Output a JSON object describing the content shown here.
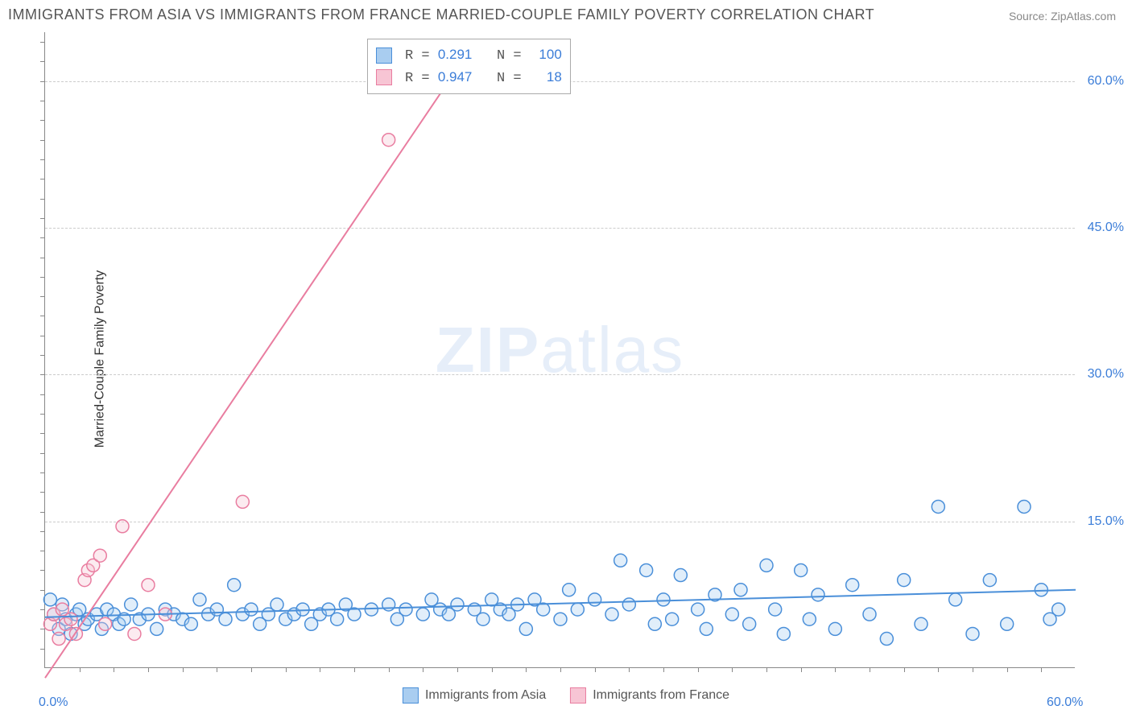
{
  "title": "IMMIGRANTS FROM ASIA VS IMMIGRANTS FROM FRANCE MARRIED-COUPLE FAMILY POVERTY CORRELATION CHART",
  "source": "Source: ZipAtlas.com",
  "watermark_prefix": "ZIP",
  "watermark_suffix": "atlas",
  "y_axis_label": "Married-Couple Family Poverty",
  "chart": {
    "type": "scatter",
    "xlim": [
      0,
      60
    ],
    "ylim": [
      0,
      65
    ],
    "x_tick_labels": {
      "0": "0.0%",
      "60": "60.0%"
    },
    "y_tick_labels": {
      "15": "15.0%",
      "30": "30.0%",
      "45": "45.0%",
      "60": "60.0%"
    },
    "x_minor_ticks": [
      2,
      4,
      6,
      8,
      10,
      12,
      14,
      16,
      18,
      20,
      22,
      24,
      26,
      28,
      30,
      32,
      34,
      36,
      38,
      40,
      42,
      44,
      46,
      48,
      50,
      52,
      54,
      56,
      58
    ],
    "y_minor_ticks": [
      2,
      4,
      6,
      8,
      10,
      12,
      14,
      16,
      18,
      20,
      22,
      24,
      26,
      28,
      30,
      32,
      34,
      36,
      38,
      40,
      42,
      44,
      46,
      48,
      50,
      52,
      54,
      56,
      58,
      60,
      62,
      64
    ],
    "grid_y": [
      15,
      30,
      45,
      60
    ],
    "background_color": "#ffffff",
    "grid_color": "#cccccc",
    "axis_color": "#888888",
    "marker_radius": 8,
    "marker_stroke_width": 1.5,
    "marker_fill_opacity": 0.35,
    "line_width": 2
  },
  "series": [
    {
      "name": "Immigrants from Asia",
      "color_stroke": "#4a8fd9",
      "color_fill": "#a9cdf0",
      "r_value": "0.291",
      "n_value": "100",
      "trend": {
        "x1": 0,
        "y1": 5.2,
        "x2": 60,
        "y2": 8.0
      },
      "points": [
        [
          0.3,
          7.0
        ],
        [
          0.5,
          5.5
        ],
        [
          0.8,
          4.0
        ],
        [
          1.0,
          6.5
        ],
        [
          1.2,
          5.0
        ],
        [
          1.5,
          3.5
        ],
        [
          1.8,
          5.5
        ],
        [
          2.0,
          6.0
        ],
        [
          2.3,
          4.5
        ],
        [
          2.5,
          5.0
        ],
        [
          3.0,
          5.5
        ],
        [
          3.3,
          4.0
        ],
        [
          3.6,
          6.0
        ],
        [
          4.0,
          5.5
        ],
        [
          4.3,
          4.5
        ],
        [
          4.6,
          5.0
        ],
        [
          5.0,
          6.5
        ],
        [
          5.5,
          5.0
        ],
        [
          6.0,
          5.5
        ],
        [
          6.5,
          4.0
        ],
        [
          7.0,
          6.0
        ],
        [
          7.5,
          5.5
        ],
        [
          8.0,
          5.0
        ],
        [
          8.5,
          4.5
        ],
        [
          9.0,
          7.0
        ],
        [
          9.5,
          5.5
        ],
        [
          10.0,
          6.0
        ],
        [
          10.5,
          5.0
        ],
        [
          11.0,
          8.5
        ],
        [
          11.5,
          5.5
        ],
        [
          12.0,
          6.0
        ],
        [
          12.5,
          4.5
        ],
        [
          13.0,
          5.5
        ],
        [
          13.5,
          6.5
        ],
        [
          14.0,
          5.0
        ],
        [
          14.5,
          5.5
        ],
        [
          15.0,
          6.0
        ],
        [
          15.5,
          4.5
        ],
        [
          16.0,
          5.5
        ],
        [
          16.5,
          6.0
        ],
        [
          17.0,
          5.0
        ],
        [
          17.5,
          6.5
        ],
        [
          18.0,
          5.5
        ],
        [
          19.0,
          6.0
        ],
        [
          20.0,
          6.5
        ],
        [
          20.5,
          5.0
        ],
        [
          21.0,
          6.0
        ],
        [
          22.0,
          5.5
        ],
        [
          22.5,
          7.0
        ],
        [
          23.0,
          6.0
        ],
        [
          23.5,
          5.5
        ],
        [
          24.0,
          6.5
        ],
        [
          25.0,
          6.0
        ],
        [
          25.5,
          5.0
        ],
        [
          26.0,
          7.0
        ],
        [
          26.5,
          6.0
        ],
        [
          27.0,
          5.5
        ],
        [
          27.5,
          6.5
        ],
        [
          28.0,
          4.0
        ],
        [
          28.5,
          7.0
        ],
        [
          29.0,
          6.0
        ],
        [
          30.0,
          5.0
        ],
        [
          30.5,
          8.0
        ],
        [
          31.0,
          6.0
        ],
        [
          32.0,
          7.0
        ],
        [
          33.0,
          5.5
        ],
        [
          33.5,
          11.0
        ],
        [
          34.0,
          6.5
        ],
        [
          35.0,
          10.0
        ],
        [
          35.5,
          4.5
        ],
        [
          36.0,
          7.0
        ],
        [
          36.5,
          5.0
        ],
        [
          37.0,
          9.5
        ],
        [
          38.0,
          6.0
        ],
        [
          38.5,
          4.0
        ],
        [
          39.0,
          7.5
        ],
        [
          40.0,
          5.5
        ],
        [
          40.5,
          8.0
        ],
        [
          41.0,
          4.5
        ],
        [
          42.0,
          10.5
        ],
        [
          42.5,
          6.0
        ],
        [
          43.0,
          3.5
        ],
        [
          44.0,
          10.0
        ],
        [
          44.5,
          5.0
        ],
        [
          45.0,
          7.5
        ],
        [
          46.0,
          4.0
        ],
        [
          47.0,
          8.5
        ],
        [
          48.0,
          5.5
        ],
        [
          49.0,
          3.0
        ],
        [
          50.0,
          9.0
        ],
        [
          51.0,
          4.5
        ],
        [
          52.0,
          16.5
        ],
        [
          53.0,
          7.0
        ],
        [
          54.0,
          3.5
        ],
        [
          55.0,
          9.0
        ],
        [
          56.0,
          4.5
        ],
        [
          57.0,
          16.5
        ],
        [
          58.0,
          8.0
        ],
        [
          58.5,
          5.0
        ],
        [
          59.0,
          6.0
        ]
      ]
    },
    {
      "name": "Immigrants from France",
      "color_stroke": "#e97da0",
      "color_fill": "#f7c5d4",
      "r_value": "0.947",
      "n_value": "18",
      "trend": {
        "x1": 0,
        "y1": -1.0,
        "x2": 23.5,
        "y2": 60.0
      },
      "points": [
        [
          0.3,
          4.5
        ],
        [
          0.5,
          5.5
        ],
        [
          0.8,
          3.0
        ],
        [
          1.0,
          6.0
        ],
        [
          1.2,
          4.5
        ],
        [
          1.5,
          5.0
        ],
        [
          1.8,
          3.5
        ],
        [
          2.3,
          9.0
        ],
        [
          2.5,
          10.0
        ],
        [
          2.8,
          10.5
        ],
        [
          3.2,
          11.5
        ],
        [
          3.5,
          4.5
        ],
        [
          4.5,
          14.5
        ],
        [
          5.2,
          3.5
        ],
        [
          6.0,
          8.5
        ],
        [
          7.0,
          5.5
        ],
        [
          11.5,
          17.0
        ],
        [
          20.0,
          54.0
        ]
      ]
    }
  ],
  "legend_box": {
    "r_label": "R =",
    "n_label": "N ="
  },
  "bottom_legend_series": [
    "Immigrants from Asia",
    "Immigrants from France"
  ]
}
